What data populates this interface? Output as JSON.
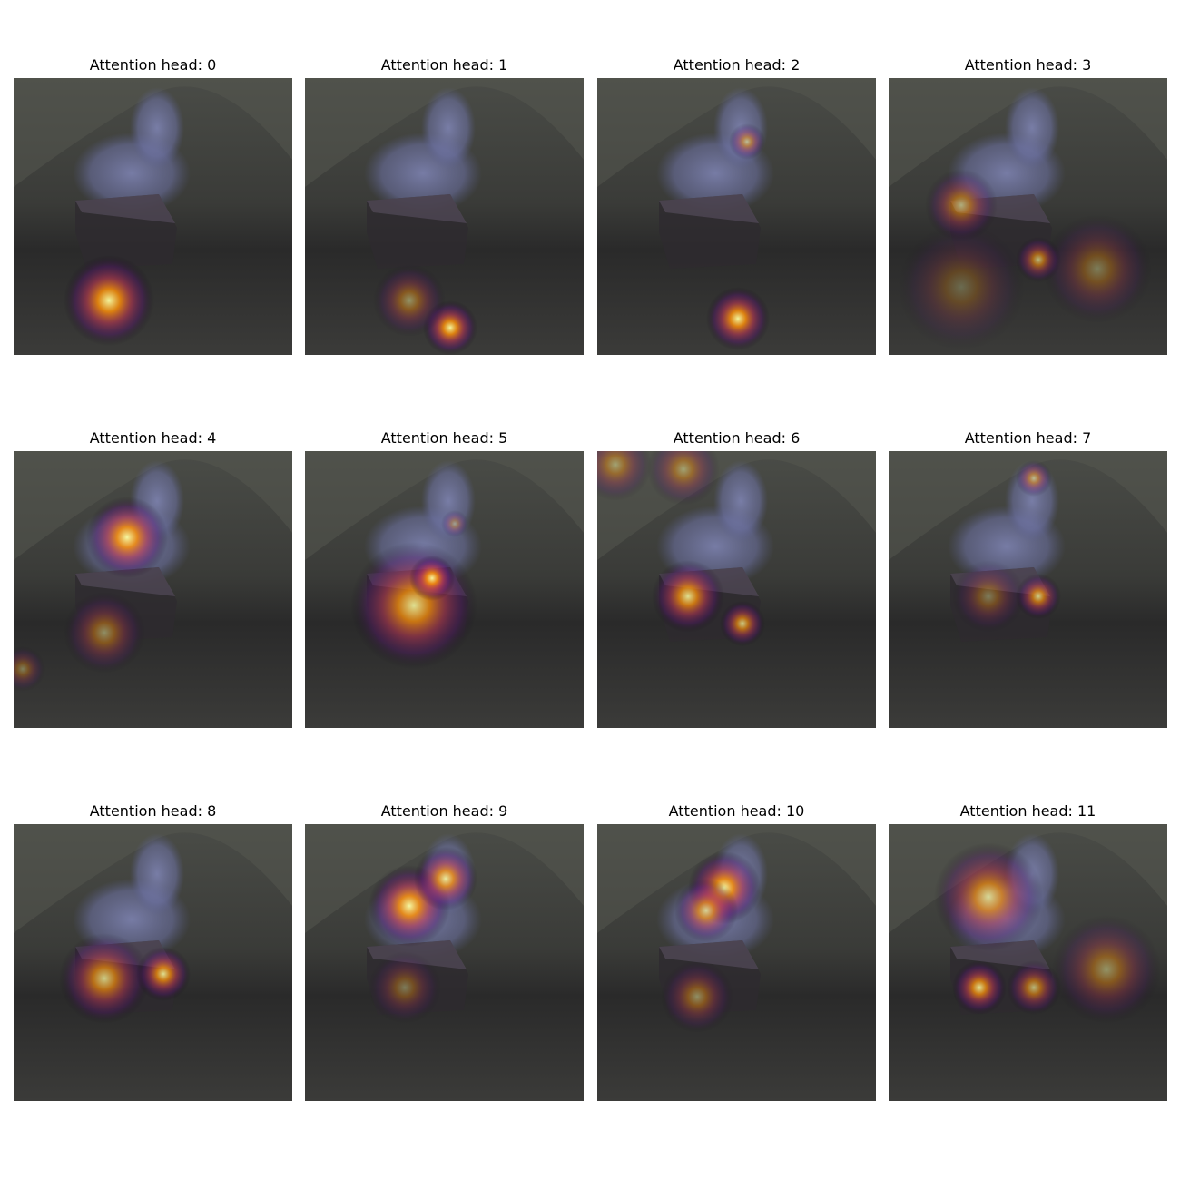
{
  "panels": [
    {
      "title": "Attention head: 0"
    },
    {
      "title": "Attention head: 1"
    },
    {
      "title": "Attention head: 2"
    },
    {
      "title": "Attention head: 3"
    },
    {
      "title": "Attention head: 4"
    },
    {
      "title": "Attention head: 5"
    },
    {
      "title": "Attention head: 6"
    },
    {
      "title": "Attention head: 7"
    },
    {
      "title": "Attention head: 8"
    },
    {
      "title": "Attention head: 9"
    },
    {
      "title": "Attention head: 10"
    },
    {
      "title": "Attention head: 11"
    }
  ]
}
